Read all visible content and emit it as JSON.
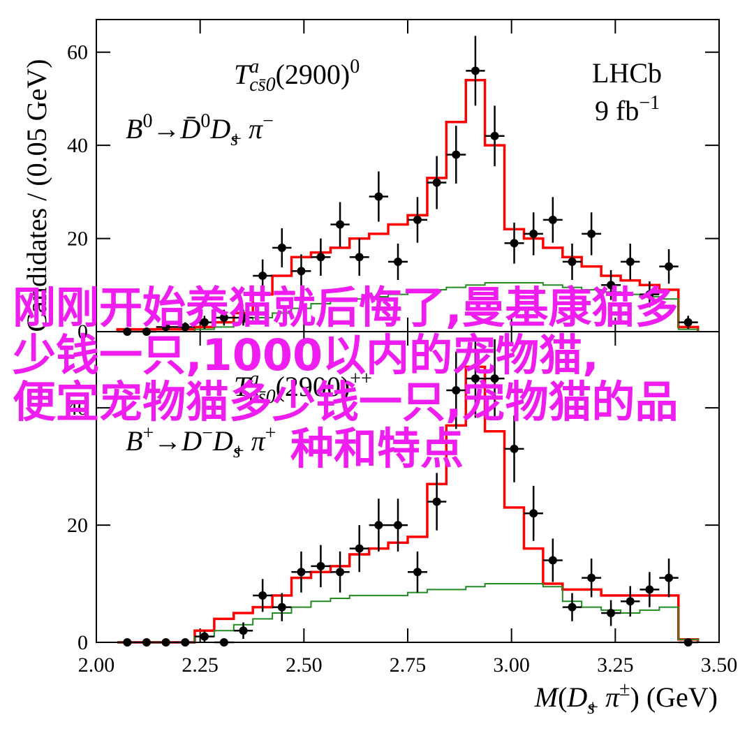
{
  "chart_data": [
    {
      "type": "histogram",
      "ylabel": "Candidates / (0.05 GeV)",
      "experiment": "LHCb",
      "luminosity": [
        {
          "text": "9 fb",
          "style": ""
        },
        {
          "text": "−1",
          "style": "sup"
        }
      ],
      "annotations": [
        [
          {
            "text": "T",
            "style": "i"
          },
          {
            "text": "a",
            "style": "sup-i"
          },
          {
            "text": "cs̄0",
            "style": "stack-i"
          },
          {
            "text": "(2900)",
            "style": ""
          },
          {
            "text": "0",
            "style": "sup"
          }
        ],
        [
          {
            "text": "B",
            "style": "i"
          },
          {
            "text": "0",
            "style": "sup"
          },
          {
            "text": "→",
            "style": ""
          },
          {
            "text": "D̄",
            "style": "i"
          },
          {
            "text": "0",
            "style": "sup"
          },
          {
            "text": "D",
            "style": "i"
          },
          {
            "text": "s",
            "style": "sub-i"
          },
          {
            "text": "+",
            "style": "stack"
          },
          {
            "text": " π",
            "style": "i"
          },
          {
            "text": "−",
            "style": "sup"
          }
        ]
      ],
      "xlim": [
        2.0,
        3.5
      ],
      "ylim": [
        0,
        67
      ],
      "yticks": [
        0,
        20,
        40,
        60
      ],
      "bins": [
        2.051,
        2.098,
        2.144,
        2.191,
        2.237,
        2.284,
        2.331,
        2.377,
        2.424,
        2.47,
        2.517,
        2.564,
        2.61,
        2.657,
        2.703,
        2.75,
        2.797,
        2.843,
        2.89,
        2.936,
        2.983,
        3.03,
        3.076,
        3.123,
        3.169,
        3.216,
        3.263,
        3.309,
        3.356,
        3.402,
        3.449
      ],
      "values": [
        0,
        0,
        1,
        1,
        2,
        3,
        3,
        12,
        18,
        13,
        16,
        23,
        16,
        29,
        15,
        24,
        32,
        38,
        56,
        42,
        19,
        21,
        24,
        15,
        21,
        10,
        15,
        8,
        14,
        2
      ],
      "errors": [
        0,
        0,
        1,
        1,
        1.4,
        1.7,
        1.7,
        3.5,
        4.2,
        3.6,
        4,
        4.8,
        4,
        5.4,
        3.9,
        4.9,
        5.7,
        6.2,
        7.5,
        6.5,
        4.4,
        4.6,
        4.9,
        3.9,
        4.6,
        3.2,
        3.9,
        2.8,
        3.7,
        1.4
      ],
      "color": "#000000",
      "series": [
        {
          "color": "#ff0000",
          "values": [
            0.5,
            0.5,
            0.5,
            0.5,
            1,
            2,
            4,
            8,
            12,
            16,
            17,
            18,
            20,
            21,
            23,
            25,
            33,
            45,
            54,
            40,
            22,
            20,
            18,
            16,
            14,
            12,
            11,
            10,
            9,
            1
          ]
        },
        {
          "color": "#228b22",
          "values": [
            0,
            0,
            0,
            0,
            0.5,
            1,
            2,
            3,
            4,
            5,
            6,
            6.5,
            7,
            7.5,
            8,
            8.5,
            9,
            9.5,
            10,
            10.5,
            10.5,
            10.5,
            10,
            9.5,
            9,
            8.5,
            8,
            7.5,
            7,
            0.5
          ]
        }
      ]
    },
    {
      "type": "histogram",
      "xlabel": [
        {
          "text": "M",
          "style": "i"
        },
        {
          "text": "(",
          "style": ""
        },
        {
          "text": "D",
          "style": "i"
        },
        {
          "text": "s",
          "style": "sub-i"
        },
        {
          "text": "+",
          "style": "stack"
        },
        {
          "text": " π",
          "style": "i"
        },
        {
          "text": "±",
          "style": "sup"
        },
        {
          "text": ") (GeV)",
          "style": ""
        }
      ],
      "annotations": [
        [
          {
            "text": "T",
            "style": "i"
          },
          {
            "text": "a",
            "style": "sup-i"
          },
          {
            "text": "cs̄0",
            "style": "stack-i"
          },
          {
            "text": "(2900)",
            "style": ""
          },
          {
            "text": "++",
            "style": "sup"
          }
        ],
        [
          {
            "text": "B",
            "style": "i"
          },
          {
            "text": "+",
            "style": "sup"
          },
          {
            "text": "→",
            "style": ""
          },
          {
            "text": "D",
            "style": "i"
          },
          {
            "text": "−",
            "style": "sup"
          },
          {
            "text": "D",
            "style": "i"
          },
          {
            "text": "s",
            "style": "sub-i"
          },
          {
            "text": "+",
            "style": "stack"
          },
          {
            "text": " π",
            "style": "i"
          },
          {
            "text": "+",
            "style": "sup"
          }
        ]
      ],
      "xlim": [
        2.0,
        3.5
      ],
      "ylim": [
        0,
        53
      ],
      "yticks": [
        0,
        20,
        40
      ],
      "xticks": [
        {
          "value": 2.0,
          "label": "2.00"
        },
        {
          "value": 2.25,
          "label": "2.25"
        },
        {
          "value": 2.5,
          "label": "2.50"
        },
        {
          "value": 2.75,
          "label": "2.75"
        },
        {
          "value": 3.0,
          "label": "3.00"
        },
        {
          "value": 3.25,
          "label": "3.25"
        },
        {
          "value": 3.5,
          "label": "3.50"
        }
      ],
      "bins": [
        2.051,
        2.098,
        2.144,
        2.191,
        2.237,
        2.284,
        2.331,
        2.377,
        2.424,
        2.47,
        2.517,
        2.564,
        2.61,
        2.657,
        2.703,
        2.75,
        2.797,
        2.843,
        2.89,
        2.936,
        2.983,
        3.03,
        3.076,
        3.123,
        3.169,
        3.216,
        3.263,
        3.309,
        3.356,
        3.402,
        3.449
      ],
      "values": [
        0,
        0,
        0,
        0,
        1,
        0,
        2,
        8,
        6,
        12,
        13,
        12,
        16,
        20,
        20,
        12,
        24,
        43,
        45,
        45,
        33,
        22,
        14,
        6,
        11,
        5,
        7,
        9,
        11,
        0
      ],
      "errors": [
        0,
        0,
        0,
        0,
        1,
        0,
        1.4,
        2.8,
        2.4,
        3.5,
        3.6,
        3.5,
        4,
        4.5,
        4.5,
        3.5,
        4.9,
        6.6,
        6.7,
        6.7,
        5.7,
        4.7,
        3.7,
        2.4,
        3.3,
        2.2,
        2.6,
        3,
        3.3,
        0
      ],
      "color": "#000000",
      "series": [
        {
          "color": "#ff0000",
          "values": [
            0,
            0,
            0,
            0,
            2,
            4,
            5,
            6,
            8,
            11,
            12,
            13,
            15,
            16,
            17,
            18,
            27,
            37,
            47,
            36,
            23,
            16,
            10,
            9,
            9,
            8,
            8,
            8,
            8,
            0.5
          ]
        },
        {
          "color": "#228b22",
          "values": [
            0,
            0,
            0,
            0,
            1,
            2,
            3,
            4,
            5,
            6,
            7,
            7.5,
            8,
            8,
            8,
            8.5,
            9,
            9,
            9.5,
            10,
            10,
            10,
            9.5,
            7,
            6,
            5.5,
            5,
            5.5,
            6,
            0.5
          ]
        }
      ]
    }
  ],
  "overlay": {
    "color": "#f01df0",
    "lines": [
      "刚刚开始养猫就后悔了,曼基康猫多",
      "少钱一只,1000以内的宠物猫,",
      "便宜宠物猫多少钱一只,宠物猫的品",
      "种和特点"
    ]
  }
}
